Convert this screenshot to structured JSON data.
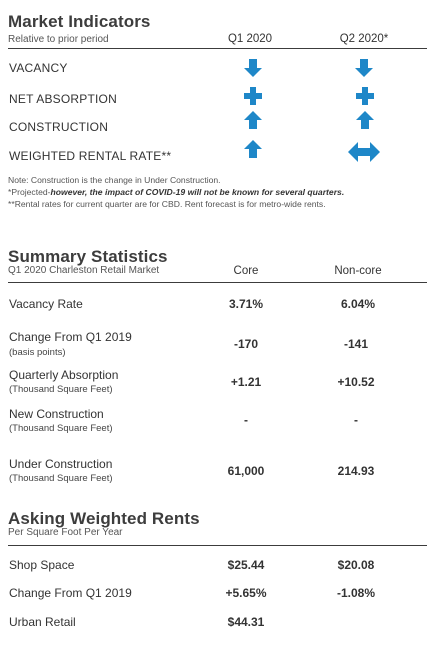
{
  "market": {
    "title": "Market Indicators",
    "subtitle": "Relative to prior period",
    "col1": "Q1 2020",
    "col2": "Q2 2020*",
    "rows": [
      {
        "label": "VACANCY",
        "q1": "down-arrow",
        "q2": "down-arrow"
      },
      {
        "label": "NET ABSORPTION",
        "q1": "plus",
        "q2": "plus"
      },
      {
        "label": "CONSTRUCTION",
        "q1": "up-arrow",
        "q2": "up-arrow"
      },
      {
        "label": "WEIGHTED RENTAL RATE**",
        "q1": "up-arrow",
        "q2": "left-right-arrow"
      }
    ],
    "icon_color": "#1e87c8",
    "notes": {
      "line1": "Note: Construction is the change in Under Construction.",
      "line2_prefix": "*Projected-",
      "line2_emph": "however, the impact of COVID-19 will not be known for several quarters.",
      "line3": "**Rental rates for current quarter are for CBD. Rent forecast is for metro-wide rents."
    }
  },
  "summary": {
    "title": "Summary Statistics",
    "subtitle": "Q1 2020 Charleston Retail Market",
    "col1": "Core",
    "col2": "Non-core",
    "rows": [
      {
        "label": "Vacancy Rate",
        "sub": "",
        "core": "3.71%",
        "noncore": "6.04%"
      },
      {
        "label": "Change From Q1 2019",
        "sub": "(basis points)",
        "core": "-170",
        "noncore": "-141"
      },
      {
        "label": "Quarterly Absorption",
        "sub": "(Thousand Square Feet)",
        "core": "+1.21",
        "noncore": "+10.52"
      },
      {
        "label": "New Construction",
        "sub": "(Thousand Square Feet)",
        "core": "-",
        "noncore": "-"
      },
      {
        "label": "Under Construction",
        "sub": "(Thousand Square Feet)",
        "core": "61,000",
        "noncore": "214.93"
      }
    ]
  },
  "rents": {
    "title": "Asking Weighted Rents",
    "subtitle": "Per Square Foot Per Year",
    "rows": [
      {
        "label": "Shop Space",
        "core": "$25.44",
        "noncore": "$20.08"
      },
      {
        "label": "Change From Q1 2019",
        "core": "+5.65%",
        "noncore": "-1.08%"
      },
      {
        "label": "Urban Retail",
        "core": "$44.31",
        "noncore": ""
      }
    ]
  }
}
